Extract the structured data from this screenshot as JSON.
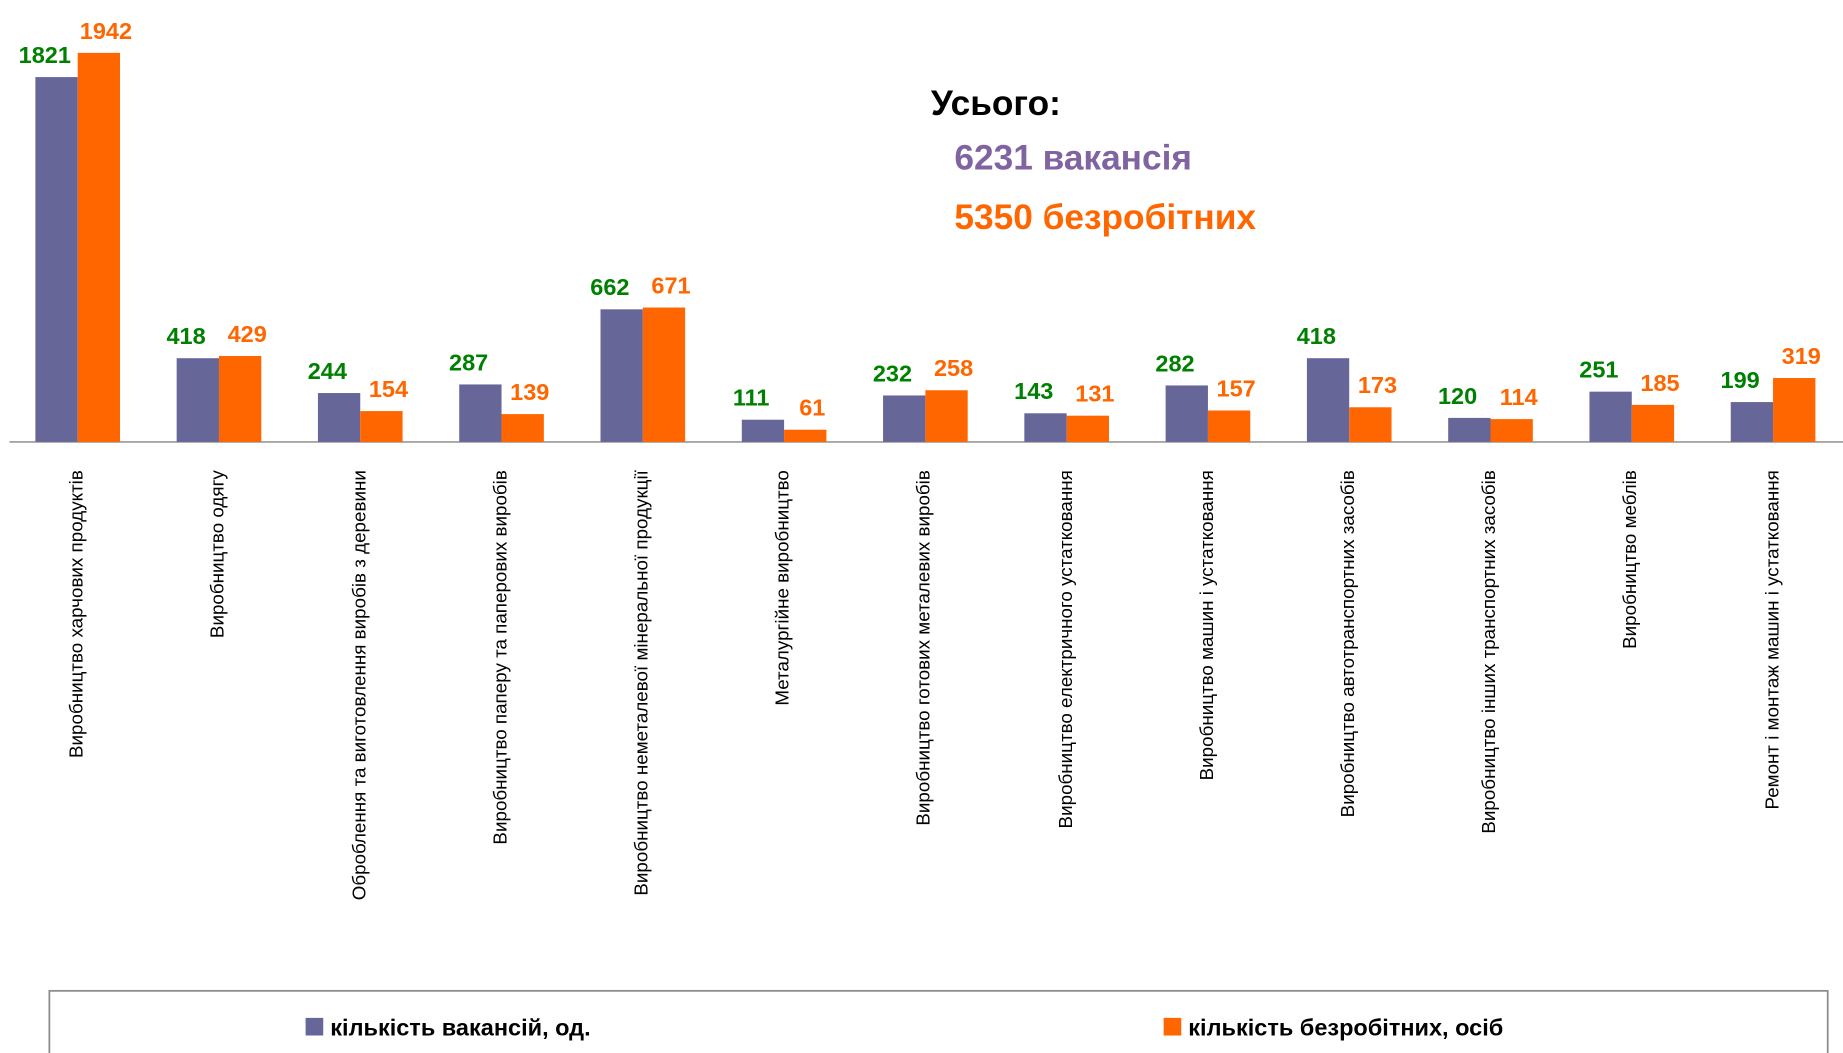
{
  "chart_data": {
    "type": "bar",
    "categories": [
      "Виробництво харчових продуктів",
      "Виробництво одягу",
      "Оброблення та виготовлення виробів з деревини",
      "Виробництво паперу та паперових виробів",
      "Виробництво неметалевої мінеральної продукції",
      "Металургійне виробництво",
      "Виробництво готових металевих виробів",
      "Виробництво електричного устатковання",
      "Виробництво машин і устатковання",
      "Виробництво автотранспортних засобів",
      "Виробництво інших транспортних засобів",
      "Виробництво меблів",
      "Ремонт і монтаж машин і устатковання"
    ],
    "series": [
      {
        "name": "кількість вакансій, од.",
        "color": "#666699",
        "label_color": "#008000",
        "values": [
          1821,
          418,
          244,
          287,
          662,
          111,
          232,
          143,
          282,
          418,
          120,
          251,
          199
        ]
      },
      {
        "name": "кількість безробітних, осіб",
        "color": "#ff6600",
        "label_color": "#ff6600",
        "values": [
          1942,
          429,
          154,
          139,
          671,
          61,
          258,
          131,
          157,
          173,
          114,
          185,
          319
        ]
      }
    ],
    "ylim": [
      0,
      2200
    ],
    "annotations": [
      {
        "text": "Усього:",
        "color": "#000000"
      },
      {
        "text": "6231 вакансія",
        "color": "#8064a2"
      },
      {
        "text": "5350 безробітних",
        "color": "#ff6600"
      }
    ],
    "legend": "bottom"
  }
}
